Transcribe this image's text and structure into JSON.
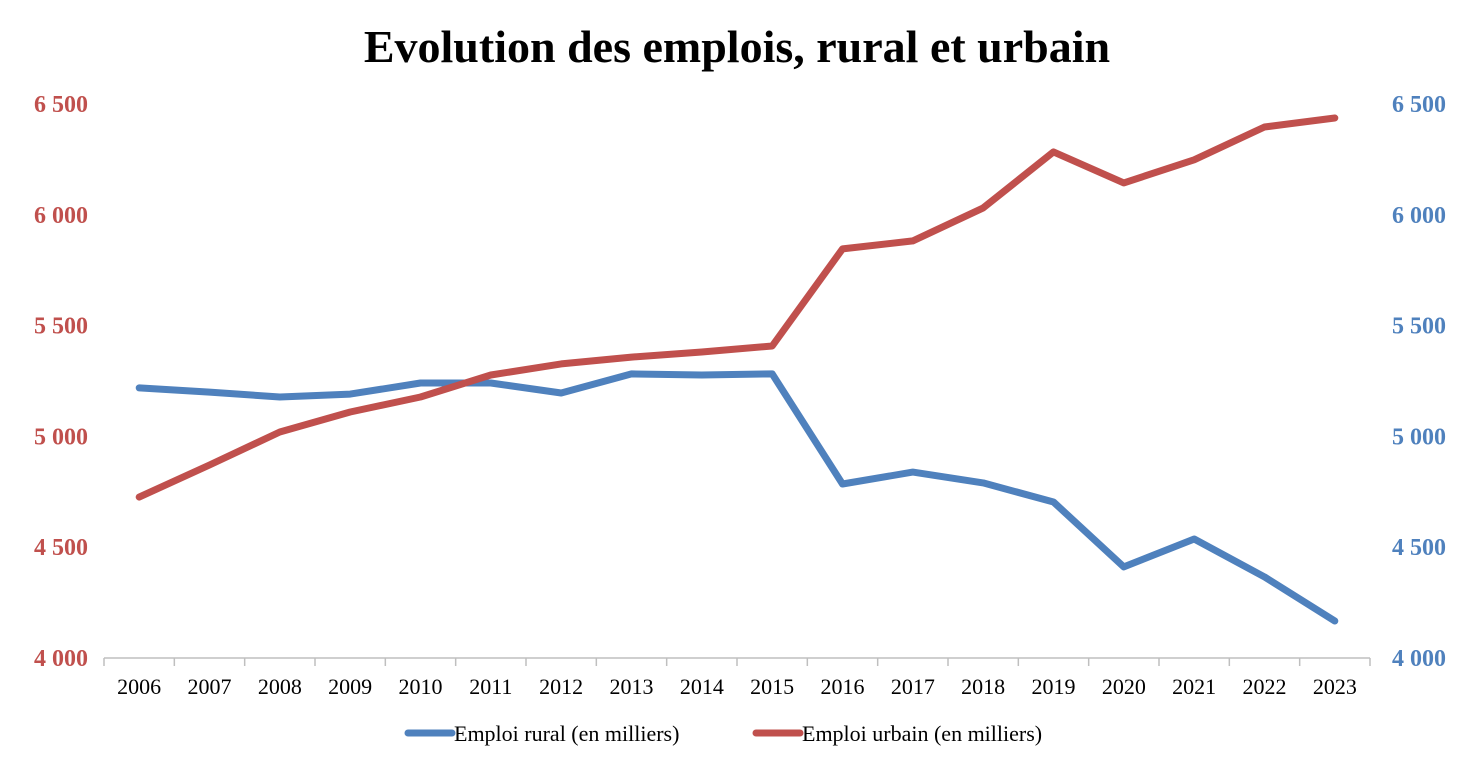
{
  "chart_data": {
    "type": "line",
    "title": "Evolution des emplois, rural et urbain",
    "x": [
      "2006",
      "2007",
      "2008",
      "2009",
      "2010",
      "2011",
      "2012",
      "2013",
      "2014",
      "2015",
      "2016",
      "2017",
      "2018",
      "2019",
      "2020",
      "2021",
      "2022",
      "2023"
    ],
    "y_left": {
      "range": [
        4000,
        6500
      ],
      "ticks": [
        "4 000",
        "4 500",
        "5 000",
        "5 500",
        "6 000",
        "6 500"
      ],
      "color": "#C0504D"
    },
    "y_right": {
      "range": [
        4000,
        6500
      ],
      "ticks": [
        "4 000",
        "4 500",
        "5 000",
        "5 500",
        "6 000",
        "6 500"
      ],
      "color": "#4F81BD"
    },
    "grid": false,
    "legend_position": "bottom",
    "series": [
      {
        "name": "Emploi rural (en milliers)",
        "color": "#4F81BD",
        "axis": "right",
        "values": [
          5219,
          5200,
          5178,
          5191,
          5241,
          5241,
          5196,
          5282,
          5277,
          5282,
          4785,
          4839,
          4790,
          4704,
          4411,
          4537,
          4366,
          4167
        ]
      },
      {
        "name": "Emploi urbain (en milliers)",
        "color": "#C0504D",
        "axis": "left",
        "values": [
          4726,
          4871,
          5020,
          5110,
          5178,
          5277,
          5327,
          5358,
          5381,
          5408,
          5846,
          5882,
          6031,
          6284,
          6144,
          6248,
          6396,
          6437
        ]
      }
    ]
  }
}
